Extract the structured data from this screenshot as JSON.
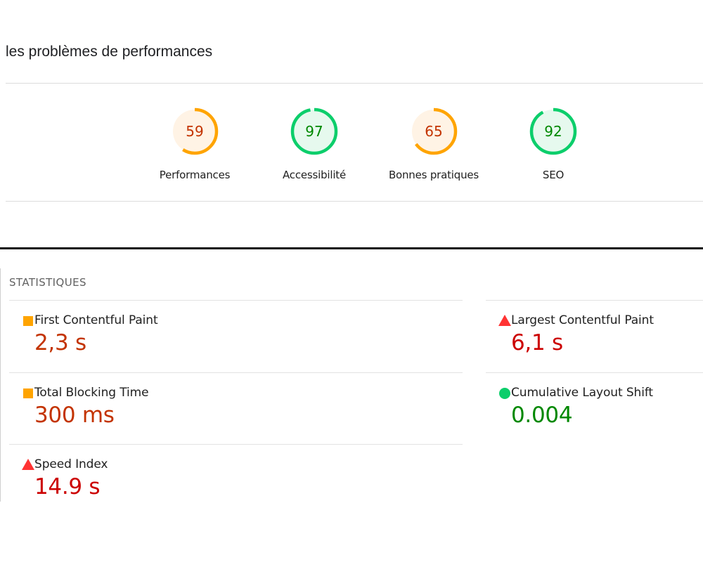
{
  "top": {
    "title": "les problèmes de performances",
    "gauges": [
      {
        "id": "performance",
        "score": "59",
        "label": "Performances",
        "fraction": 0.59,
        "stroke": "#ffa400",
        "fill": "#fff3e5",
        "text": "#c33300"
      },
      {
        "id": "accessibility",
        "score": "97",
        "label": "Accessibilité",
        "fraction": 0.97,
        "stroke": "#0cce6b",
        "fill": "#e6f9ee",
        "text": "#008800"
      },
      {
        "id": "best-practices",
        "score": "65",
        "label": "Bonnes pratiques",
        "fraction": 0.65,
        "stroke": "#ffa400",
        "fill": "#fff3e5",
        "text": "#c33300"
      },
      {
        "id": "seo",
        "score": "92",
        "label": "SEO",
        "fraction": 0.92,
        "stroke": "#0cce6b",
        "fill": "#e6f9ee",
        "text": "#008800"
      }
    ]
  },
  "stats": {
    "heading": "STATISTIQUES",
    "metrics": {
      "fcp": {
        "name": "First Contentful Paint",
        "value": "2,3 s",
        "indicator": "orange-square-icon",
        "color": "#c33300"
      },
      "lcp": {
        "name": "Largest Contentful Paint",
        "value": "6,1 s",
        "indicator": "red-triangle-icon",
        "color": "#cc0000"
      },
      "tbt": {
        "name": "Total Blocking Time",
        "value": "300 ms",
        "indicator": "orange-square-icon",
        "color": "#c33300"
      },
      "cls": {
        "name": "Cumulative Layout Shift",
        "value": "0.004",
        "indicator": "green-circle-icon",
        "color": "#008800"
      },
      "si": {
        "name": "Speed Index",
        "value": "14.9 s",
        "indicator": "red-triangle-icon",
        "color": "#cc0000"
      }
    }
  }
}
